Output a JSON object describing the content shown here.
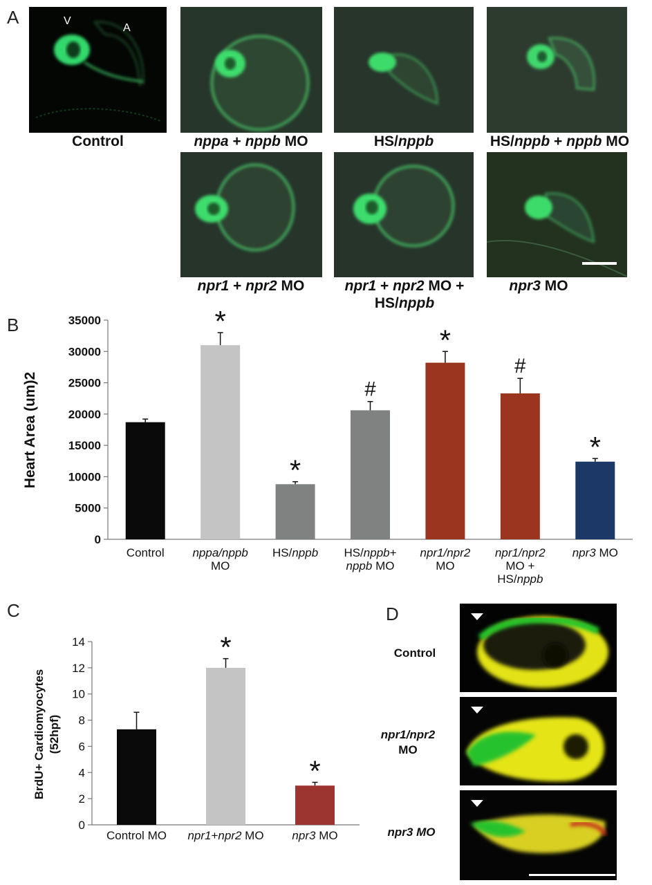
{
  "panel_letters": {
    "a": "A",
    "b": "B",
    "c": "C",
    "d": "D"
  },
  "panel_a": {
    "chamber_labels": {
      "ventricle": "V",
      "atrium": "A"
    },
    "captions": [
      {
        "pre": "Control"
      },
      {
        "i1": "nppa",
        "m1": " + ",
        "i2": "nppb",
        "post": " MO"
      },
      {
        "pre": "HS/",
        "i1": "nppb"
      },
      {
        "pre": "HS/",
        "i1": "nppb",
        "m1": " + ",
        "i2": "nppb",
        "post": " MO"
      },
      {
        "i1": "npr1",
        "m1": " + ",
        "i2": "npr2",
        "post": " MO"
      },
      {
        "i1": "npr1",
        "m1": " + ",
        "i2": "npr2",
        "post": " MO +",
        "line2_pre": "HS/",
        "line2_i": "nppb"
      },
      {
        "i1": "npr3",
        "post": " MO"
      }
    ],
    "colors": {
      "background": "#1d2a1b",
      "fluorescence": "#3cd86a"
    }
  },
  "panel_d": {
    "labels": [
      {
        "i": "",
        "text": "Control",
        "line2": ""
      },
      {
        "i": "npr1/npr2",
        "text": "",
        "line2": "MO"
      },
      {
        "i": "npr3 MO",
        "text": "",
        "line2": ""
      }
    ],
    "colors": {
      "green": "#1fc52a",
      "yellow": "#e8e816"
    }
  },
  "chart_data": [
    {
      "panel": "B",
      "type": "bar",
      "ylabel": "Heart Area (um)2",
      "xlabel": "",
      "ylim": [
        0,
        35000
      ],
      "yticks": [
        "0",
        "5000",
        "10000",
        "15000",
        "20000",
        "25000",
        "30000",
        "35000"
      ],
      "categories": [
        {
          "l1": "Control",
          "l2": "",
          "l3": ""
        },
        {
          "l1": "nppa/nppb",
          "l2": "MO",
          "l3": ""
        },
        {
          "l1": "HS/nppb",
          "l2": "",
          "l3": ""
        },
        {
          "l1": "HS/nppb+",
          "l2": "nppb MO",
          "l3": ""
        },
        {
          "l1": "npr1/npr2",
          "l2": "MO",
          "l3": ""
        },
        {
          "l1": "npr1/npr2",
          "l2": "MO +",
          "l3": "HS/nppb"
        },
        {
          "l1": "npr3 MO",
          "l2": "",
          "l3": ""
        }
      ],
      "values": [
        18700,
        31000,
        8800,
        20600,
        28200,
        23300,
        12400
      ],
      "errors": [
        500,
        2000,
        400,
        1400,
        1800,
        2400,
        500
      ],
      "significance": [
        "",
        "*",
        "*",
        "#",
        "*",
        "#",
        "*"
      ],
      "colors": [
        "#0a0a0a",
        "#c4c4c4",
        "#7f8280",
        "#7f8280",
        "#9c3520",
        "#9c3520",
        "#1c3866"
      ],
      "grid": false,
      "legend": "none"
    },
    {
      "panel": "C",
      "type": "bar",
      "ylabel": "BrdU+ Cardiomyocytes",
      "ylabel2": "(52hpf)",
      "xlabel": "",
      "ylim": [
        0,
        14
      ],
      "yticks": [
        "0",
        "2",
        "4",
        "6",
        "8",
        "10",
        "12",
        "14"
      ],
      "categories": [
        {
          "l1": "Control MO"
        },
        {
          "l1": "npr1+npr2 MO"
        },
        {
          "l1": "npr3 MO"
        }
      ],
      "values": [
        7.3,
        12.0,
        3.0
      ],
      "errors": [
        1.3,
        0.7,
        0.25
      ],
      "significance": [
        "",
        "*",
        "*"
      ],
      "colors": [
        "#0a0a0a",
        "#c4c4c4",
        "#9c3530"
      ],
      "grid": false,
      "legend": "none"
    }
  ]
}
